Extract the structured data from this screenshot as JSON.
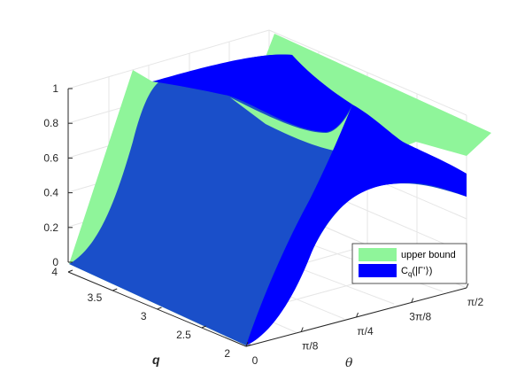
{
  "chart_data": {
    "type": "surface3d",
    "zlim": [
      0,
      1
    ],
    "z_ticks": [
      "0",
      "0.2",
      "0.4",
      "0.6",
      "0.8",
      "1"
    ],
    "q_ticks": [
      "2",
      "2.5",
      "3",
      "3.5",
      "4"
    ],
    "theta_ticks": [
      "0",
      "π/8",
      "π/4",
      "3π/8",
      "π/2"
    ],
    "q_label": "q",
    "theta_label": "θ",
    "grid": true,
    "legend_placement": "right",
    "series": [
      {
        "name": "upper bound",
        "color": "#8ff59a",
        "points": [
          {
            "q": 4,
            "theta": 0,
            "z": 0
          },
          {
            "q": 2,
            "theta": 0,
            "z": 0
          },
          {
            "q": 4,
            "theta": 0.2,
            "z": 1
          },
          {
            "q": 2,
            "theta": 1.571,
            "z": 1
          },
          {
            "q": 4,
            "theta": 1.571,
            "z": 0.62
          }
        ]
      },
      {
        "name": "C_q(|Γ’⟩)",
        "color": "#0000ff",
        "points": [
          {
            "q": 4,
            "theta": 0,
            "z": 0
          },
          {
            "q": 2,
            "theta": 0,
            "z": 0
          },
          {
            "q": 4,
            "theta": 0.785,
            "z": 0.5
          },
          {
            "q": 2,
            "theta": 0.785,
            "z": 0.9
          },
          {
            "q": 4,
            "theta": 1.571,
            "z": 0.4
          },
          {
            "q": 2,
            "theta": 1.571,
            "z": 1.0
          }
        ]
      }
    ],
    "legend": [
      {
        "label": "upper bound",
        "color": "#8ff59a"
      },
      {
        "label_main": "C",
        "label_sub": "q",
        "label_rest": "(|Γ’⟩)",
        "color": "#0000ff"
      }
    ]
  }
}
